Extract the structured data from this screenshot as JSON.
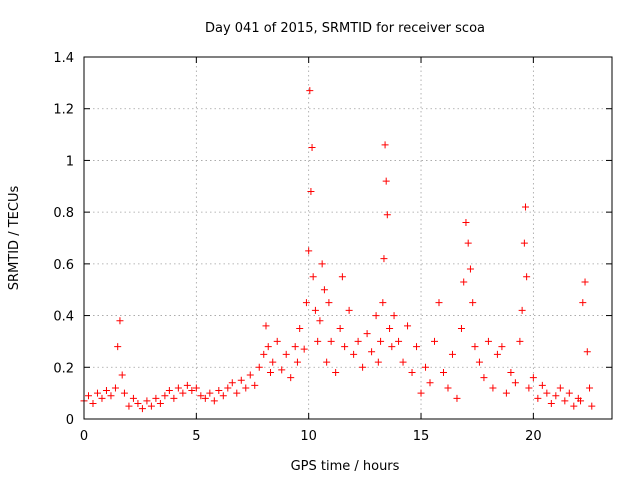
{
  "chart_data": {
    "type": "scatter",
    "title": "Day 041 of 2015, SRMTID for receiver scoa",
    "xlabel": "GPS time / hours",
    "ylabel": "SRMTID / TECUs",
    "xlim": [
      0,
      23.5
    ],
    "ylim": [
      0,
      1.4
    ],
    "xticks": [
      0,
      5,
      10,
      15,
      20
    ],
    "xtick_labels": [
      "0",
      "5",
      "10",
      "15",
      "20"
    ],
    "yticks": [
      0,
      0.2,
      0.4,
      0.6,
      0.8,
      1,
      1.2,
      1.4
    ],
    "ytick_labels": [
      "0",
      "0.2",
      "0.4",
      "0.6",
      "0.8",
      "1",
      "1.2",
      "1.4"
    ],
    "grid": true,
    "marker": "+",
    "series": [
      {
        "name": "SRMTID",
        "color": "#ff0000",
        "x": [
          0.0,
          0.2,
          0.4,
          0.6,
          0.8,
          1.0,
          1.2,
          1.4,
          1.5,
          1.6,
          1.7,
          1.8,
          2.0,
          2.2,
          2.4,
          2.6,
          2.8,
          3.0,
          3.2,
          3.4,
          3.6,
          3.8,
          4.0,
          4.2,
          4.4,
          4.6,
          4.8,
          5.0,
          5.2,
          5.4,
          5.6,
          5.8,
          6.0,
          6.2,
          6.4,
          6.6,
          6.8,
          7.0,
          7.2,
          7.4,
          7.6,
          7.8,
          8.0,
          8.1,
          8.2,
          8.3,
          8.4,
          8.6,
          8.8,
          9.0,
          9.2,
          9.4,
          9.5,
          9.6,
          9.8,
          9.9,
          10.0,
          10.05,
          10.1,
          10.15,
          10.2,
          10.3,
          10.4,
          10.5,
          10.6,
          10.7,
          10.8,
          10.9,
          11.0,
          11.2,
          11.4,
          11.5,
          11.6,
          11.8,
          12.0,
          12.2,
          12.4,
          12.6,
          12.8,
          13.0,
          13.1,
          13.2,
          13.3,
          13.35,
          13.4,
          13.45,
          13.5,
          13.6,
          13.7,
          13.8,
          14.0,
          14.2,
          14.4,
          14.6,
          14.8,
          15.0,
          15.2,
          15.4,
          15.6,
          15.8,
          16.0,
          16.2,
          16.4,
          16.6,
          16.8,
          16.9,
          17.0,
          17.1,
          17.2,
          17.3,
          17.4,
          17.6,
          17.8,
          18.0,
          18.2,
          18.4,
          18.6,
          18.8,
          19.0,
          19.2,
          19.4,
          19.5,
          19.6,
          19.65,
          19.7,
          19.8,
          20.0,
          20.2,
          20.4,
          20.6,
          20.8,
          21.0,
          21.2,
          21.4,
          21.6,
          21.8,
          22.0,
          22.1,
          22.2,
          22.3,
          22.4,
          22.5,
          22.6
        ],
        "y": [
          0.07,
          0.09,
          0.06,
          0.1,
          0.08,
          0.11,
          0.09,
          0.12,
          0.28,
          0.38,
          0.17,
          0.1,
          0.05,
          0.08,
          0.06,
          0.04,
          0.07,
          0.05,
          0.08,
          0.06,
          0.09,
          0.11,
          0.08,
          0.12,
          0.1,
          0.13,
          0.11,
          0.12,
          0.09,
          0.08,
          0.1,
          0.07,
          0.11,
          0.09,
          0.12,
          0.14,
          0.1,
          0.15,
          0.12,
          0.17,
          0.13,
          0.2,
          0.25,
          0.36,
          0.28,
          0.18,
          0.22,
          0.3,
          0.19,
          0.25,
          0.16,
          0.28,
          0.22,
          0.35,
          0.27,
          0.45,
          0.65,
          1.27,
          0.88,
          1.05,
          0.55,
          0.42,
          0.3,
          0.38,
          0.6,
          0.5,
          0.22,
          0.45,
          0.3,
          0.18,
          0.35,
          0.55,
          0.28,
          0.42,
          0.25,
          0.3,
          0.2,
          0.33,
          0.26,
          0.4,
          0.22,
          0.3,
          0.45,
          0.62,
          1.06,
          0.92,
          0.79,
          0.35,
          0.28,
          0.4,
          0.3,
          0.22,
          0.36,
          0.18,
          0.28,
          0.1,
          0.2,
          0.14,
          0.3,
          0.45,
          0.18,
          0.12,
          0.25,
          0.08,
          0.35,
          0.53,
          0.76,
          0.68,
          0.58,
          0.45,
          0.28,
          0.22,
          0.16,
          0.3,
          0.12,
          0.25,
          0.28,
          0.1,
          0.18,
          0.14,
          0.3,
          0.42,
          0.68,
          0.82,
          0.55,
          0.12,
          0.16,
          0.08,
          0.13,
          0.1,
          0.06,
          0.09,
          0.12,
          0.07,
          0.1,
          0.05,
          0.08,
          0.07,
          0.45,
          0.53,
          0.26,
          0.12,
          0.05
        ]
      }
    ]
  }
}
